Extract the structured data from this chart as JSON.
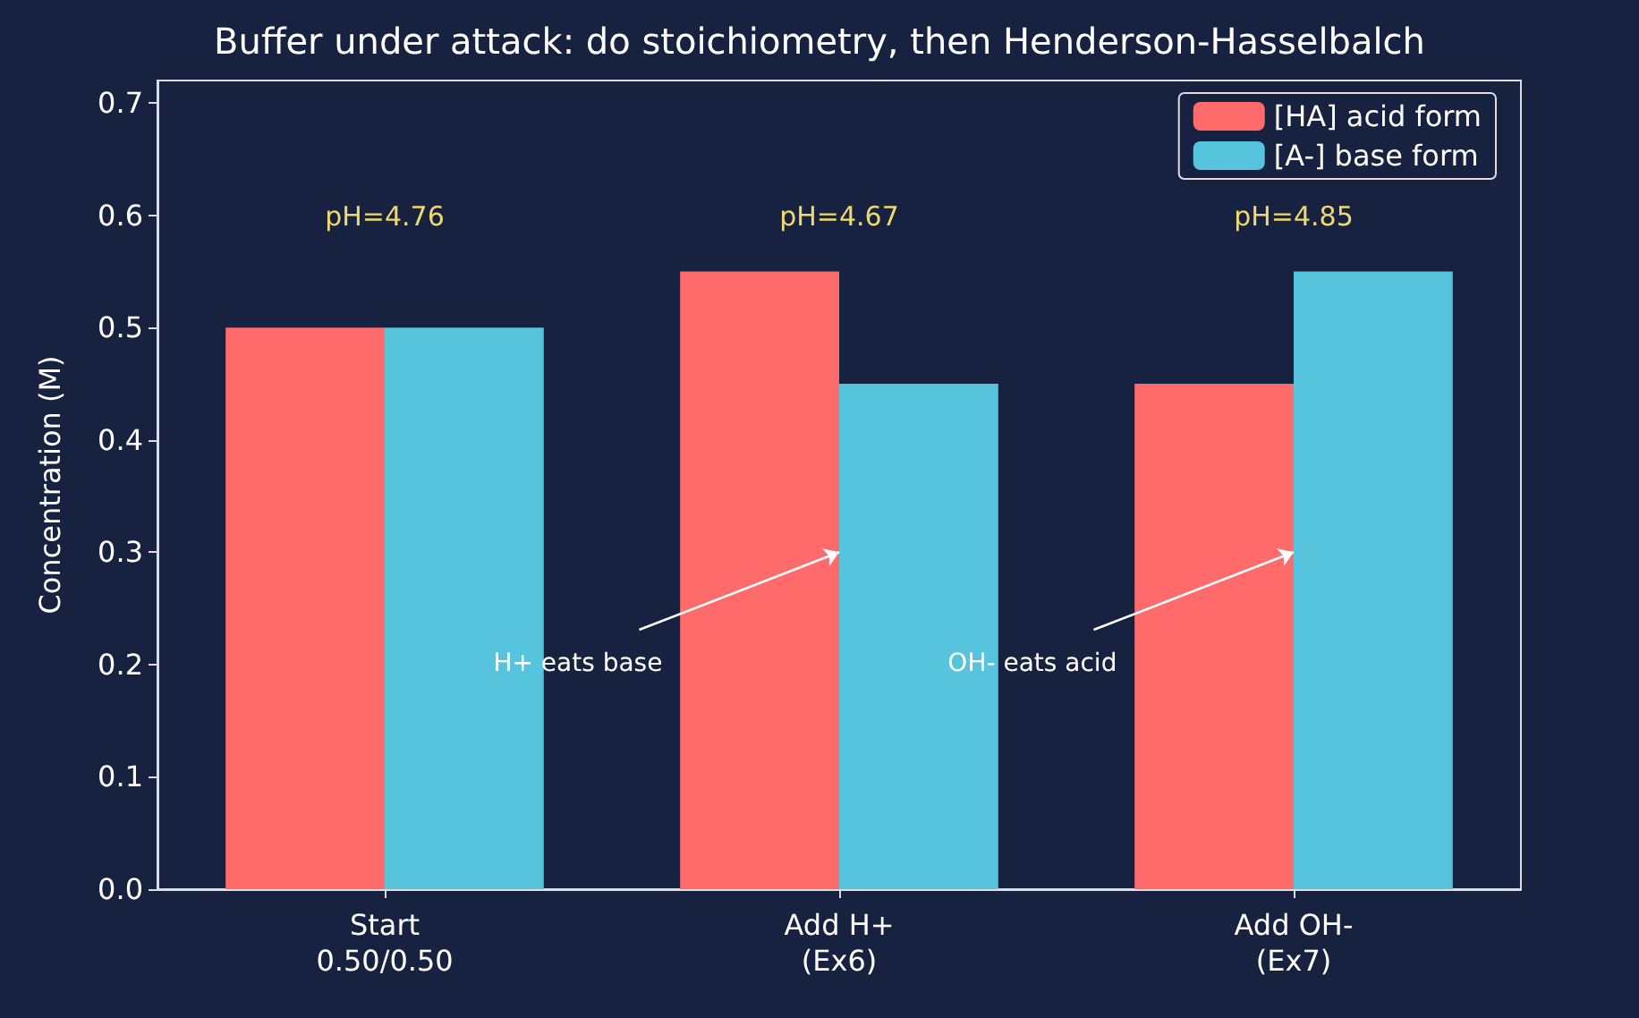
{
  "chart_data": {
    "type": "bar",
    "title": "Buffer under attack: do stoichiometry, then Henderson-Hasselbalch",
    "ylabel": "Concentration (M)",
    "categories": [
      "Start\n0.50/0.50",
      "Add H+\n(Ex6)",
      "Add OH-\n(Ex7)"
    ],
    "series": [
      {
        "name": "[HA] acid form",
        "color": "#ff6b6b",
        "values": [
          0.5,
          0.55,
          0.45
        ]
      },
      {
        "name": "[A-] base form",
        "color": "#56c4dc",
        "values": [
          0.5,
          0.45,
          0.55
        ]
      }
    ],
    "ylim": [
      0,
      0.72
    ],
    "yticks": [
      {
        "value": 0,
        "label": "0.0"
      },
      0.1,
      0.2,
      0.3,
      0.4,
      0.5,
      0.6,
      0.7
    ],
    "grid": false,
    "legend": "top right",
    "annotations": [
      "pH=4.76",
      "pH=4.67",
      "pH=4.85",
      {
        "text": "H+ eats base",
        "x": "Add H+\n(Ex6)",
        "y": 0.3
      },
      {
        "text": "OH- eats acid",
        "x": "Add OH-\n(Ex7)",
        "y": 0.3
      }
    ]
  }
}
